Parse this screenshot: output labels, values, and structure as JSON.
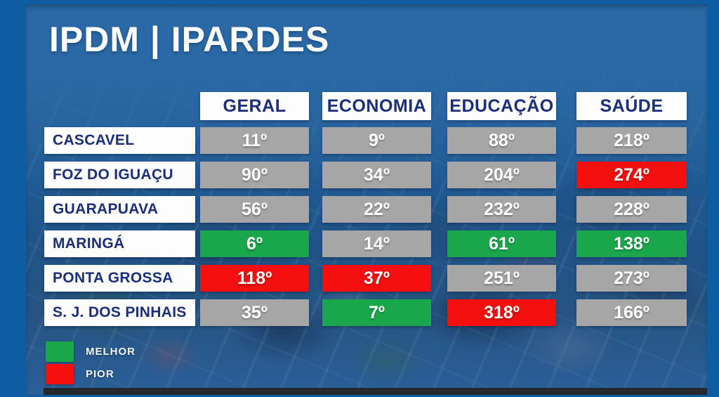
{
  "title": "IPDM | IPARDES",
  "table": {
    "columns": [
      "GERAL",
      "ECONOMIA",
      "EDUCAÇÃO",
      "SAÚDE"
    ],
    "rows": [
      {
        "label": "CASCAVEL",
        "cells": [
          {
            "value": "11º",
            "state": "neutral"
          },
          {
            "value": "9º",
            "state": "neutral"
          },
          {
            "value": "88º",
            "state": "neutral"
          },
          {
            "value": "218º",
            "state": "neutral"
          }
        ]
      },
      {
        "label": "FOZ DO IGUAÇU",
        "cells": [
          {
            "value": "90º",
            "state": "neutral"
          },
          {
            "value": "34º",
            "state": "neutral"
          },
          {
            "value": "204º",
            "state": "neutral"
          },
          {
            "value": "274º",
            "state": "worst"
          }
        ]
      },
      {
        "label": "GUARAPUAVA",
        "cells": [
          {
            "value": "56º",
            "state": "neutral"
          },
          {
            "value": "22º",
            "state": "neutral"
          },
          {
            "value": "232º",
            "state": "neutral"
          },
          {
            "value": "228º",
            "state": "neutral"
          }
        ]
      },
      {
        "label": "MARINGÁ",
        "cells": [
          {
            "value": "6º",
            "state": "best"
          },
          {
            "value": "14º",
            "state": "neutral"
          },
          {
            "value": "61º",
            "state": "best"
          },
          {
            "value": "138º",
            "state": "best"
          }
        ]
      },
      {
        "label": "PONTA GROSSA",
        "cells": [
          {
            "value": "118º",
            "state": "worst"
          },
          {
            "value": "37º",
            "state": "worst"
          },
          {
            "value": "251º",
            "state": "neutral"
          },
          {
            "value": "273º",
            "state": "neutral"
          }
        ]
      },
      {
        "label": "S. J. DOS PINHAIS",
        "cells": [
          {
            "value": "35º",
            "state": "neutral"
          },
          {
            "value": "7º",
            "state": "best"
          },
          {
            "value": "318º",
            "state": "worst"
          },
          {
            "value": "166º",
            "state": "neutral"
          }
        ]
      }
    ]
  },
  "legend": {
    "items": [
      {
        "label": "MELHOR",
        "color": "#1aa74b"
      },
      {
        "label": "PIOR",
        "color": "#f50f0f"
      }
    ]
  },
  "colors": {
    "best": "#1aa74b",
    "worst": "#f50f0f",
    "neutral": "#a6a6a6",
    "header_text": "#1b2e7c",
    "page_blue": "#0e5da3",
    "photo_blue": "#2a69a5"
  },
  "chart_data": {
    "type": "table",
    "title": "IPDM | IPARDES",
    "columns": [
      "GERAL",
      "ECONOMIA",
      "EDUCAÇÃO",
      "SAÚDE"
    ],
    "rows": [
      "CASCAVEL",
      "FOZ DO IGUAÇU",
      "GUARAPUAVA",
      "MARINGÁ",
      "PONTA GROSSA",
      "S. J. DOS PINHAIS"
    ],
    "values": [
      [
        11,
        9,
        88,
        218
      ],
      [
        90,
        34,
        204,
        274
      ],
      [
        56,
        22,
        232,
        228
      ],
      [
        6,
        14,
        61,
        138
      ],
      [
        118,
        37,
        251,
        273
      ],
      [
        35,
        7,
        318,
        166
      ]
    ],
    "unit": "ranking position (º)",
    "highlights": {
      "best_green": [
        [
          "MARINGÁ",
          "GERAL",
          6
        ],
        [
          "MARINGÁ",
          "EDUCAÇÃO",
          61
        ],
        [
          "MARINGÁ",
          "SAÚDE",
          138
        ],
        [
          "S. J. DOS PINHAIS",
          "ECONOMIA",
          7
        ]
      ],
      "worst_red": [
        [
          "FOZ DO IGUAÇU",
          "SAÚDE",
          274
        ],
        [
          "PONTA GROSSA",
          "GERAL",
          118
        ],
        [
          "PONTA GROSSA",
          "ECONOMIA",
          37
        ],
        [
          "S. J. DOS PINHAIS",
          "EDUCAÇÃO",
          318
        ]
      ]
    },
    "legend": [
      {
        "label": "MELHOR",
        "color": "#1aa74b"
      },
      {
        "label": "PIOR",
        "color": "#f50f0f"
      }
    ]
  }
}
